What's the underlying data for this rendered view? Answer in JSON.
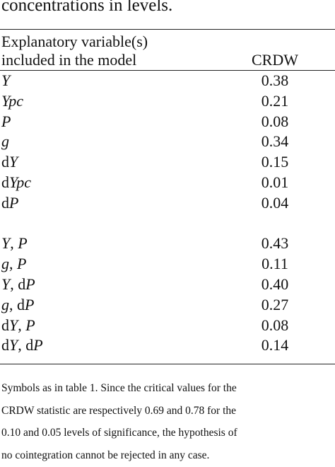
{
  "caption": "concentrations in levels.",
  "table": {
    "header": {
      "variable_line1": "Explanatory variable(s)",
      "variable_line2": "included in the model",
      "statistic": "CRDW"
    },
    "groups": [
      {
        "rows": [
          [
            "Y",
            "0.38"
          ],
          [
            "Ypc",
            "0.21"
          ],
          [
            "P",
            "0.08"
          ],
          [
            "g",
            "0.34"
          ],
          [
            "dY",
            "0.15"
          ],
          [
            "dYpc",
            "0.01"
          ],
          [
            "dP",
            "0.04"
          ]
        ]
      },
      {
        "rows": [
          [
            "Y, P",
            "0.43"
          ],
          [
            "g, P",
            "0.11"
          ],
          [
            "Y, dP",
            "0.40"
          ],
          [
            "g, dP",
            "0.27"
          ],
          [
            "dY, P",
            "0.08"
          ],
          [
            "dY, dP",
            "0.14"
          ]
        ]
      }
    ]
  },
  "note": [
    "Symbols as in table 1. Since the critical values for the",
    "CRDW statistic are respectively 0.69 and 0.78 for the",
    "0.10 and 0.05 levels of significance, the hypothesis of",
    "no cointegration cannot be rejected in any case."
  ]
}
